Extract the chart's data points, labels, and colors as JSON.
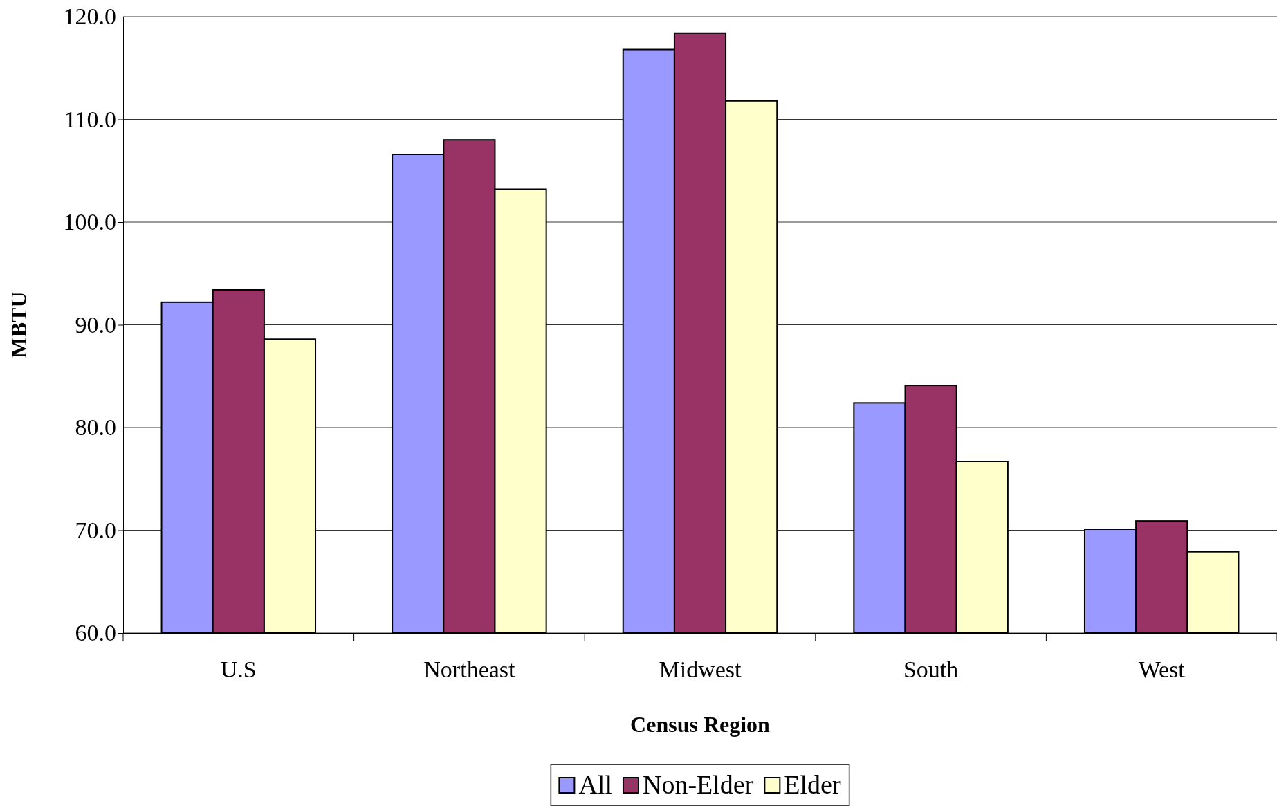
{
  "chart_data": {
    "type": "bar",
    "xlabel": "Census Region",
    "ylabel": "MBTU",
    "categories": [
      "U.S",
      "Northeast",
      "Midwest",
      "South",
      "West"
    ],
    "series": [
      {
        "name": "All",
        "color": "#9999ff",
        "values": [
          92.2,
          106.6,
          116.8,
          82.4,
          70.1
        ]
      },
      {
        "name": "Non-Elder",
        "color": "#993366",
        "values": [
          93.4,
          108.0,
          118.4,
          84.1,
          70.9
        ]
      },
      {
        "name": "Elder",
        "color": "#ffffcc",
        "values": [
          88.6,
          103.2,
          111.8,
          76.7,
          67.9
        ]
      }
    ],
    "ylim": [
      60,
      120
    ],
    "yticks": [
      {
        "value": 60,
        "label": "60.0"
      },
      {
        "value": 70,
        "label": "70.0"
      },
      {
        "value": 80,
        "label": "80.0"
      },
      {
        "value": 90,
        "label": "90.0"
      },
      {
        "value": 100,
        "label": "100.0"
      },
      {
        "value": 110,
        "label": "110.0"
      },
      {
        "value": 120,
        "label": "120.0"
      }
    ],
    "grid": "y",
    "legend": "bottom"
  }
}
